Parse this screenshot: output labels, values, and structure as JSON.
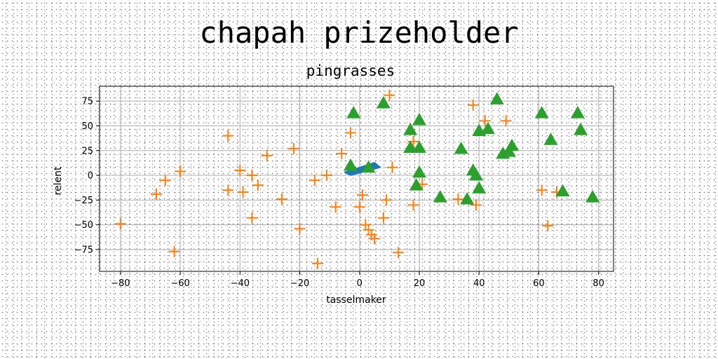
{
  "figure": {
    "suptitle": "chapah prizeholder"
  },
  "chart_data": {
    "type": "scatter",
    "title": "pingrasses",
    "xlabel": "tasselmaker",
    "ylabel": "relent",
    "xlim": [
      -87,
      85
    ],
    "ylim": [
      -97,
      90
    ],
    "xticks": [
      -80,
      -60,
      -40,
      -20,
      0,
      20,
      40,
      60,
      80
    ],
    "yticks": [
      -75,
      -50,
      -25,
      0,
      25,
      50,
      75
    ],
    "grid": true,
    "series": [
      {
        "marker": "polygon",
        "color": "#1f77b4",
        "points": [
          [
            -5,
            3
          ],
          [
            5,
            13
          ],
          [
            7,
            8
          ],
          [
            -3,
            0
          ]
        ]
      },
      {
        "marker": "plus",
        "color": "#ff7f0e",
        "points": [
          [
            -80,
            -49
          ],
          [
            -68,
            -19
          ],
          [
            -65,
            -5
          ],
          [
            -62,
            -77
          ],
          [
            -60,
            4
          ],
          [
            -44,
            40
          ],
          [
            -44,
            -15
          ],
          [
            -40,
            5
          ],
          [
            -39,
            -17
          ],
          [
            -36,
            0
          ],
          [
            -36,
            -43
          ],
          [
            -34,
            -10
          ],
          [
            -31,
            20
          ],
          [
            -26,
            -24
          ],
          [
            -22,
            27
          ],
          [
            -20,
            -54
          ],
          [
            -15,
            -5
          ],
          [
            -14,
            -89
          ],
          [
            -11,
            0
          ],
          [
            -8,
            -32
          ],
          [
            -6,
            22
          ],
          [
            -3,
            43
          ],
          [
            0,
            -32
          ],
          [
            1,
            -20
          ],
          [
            2,
            -50
          ],
          [
            3,
            -55
          ],
          [
            4,
            -60
          ],
          [
            5,
            -64
          ],
          [
            8,
            -43
          ],
          [
            9,
            -25
          ],
          [
            10,
            81
          ],
          [
            11,
            8
          ],
          [
            13,
            -78
          ],
          [
            18,
            34
          ],
          [
            18,
            -30
          ],
          [
            21,
            -9
          ],
          [
            33,
            -24
          ],
          [
            38,
            71
          ],
          [
            39,
            -30
          ],
          [
            42,
            55
          ],
          [
            49,
            55
          ],
          [
            61,
            -15
          ],
          [
            63,
            -51
          ],
          [
            66,
            -17
          ]
        ]
      },
      {
        "marker": "triangle-up",
        "color": "#2ca02c",
        "points": [
          [
            -2,
            63
          ],
          [
            -3,
            10
          ],
          [
            3,
            8
          ],
          [
            8,
            73
          ],
          [
            17,
            46
          ],
          [
            17,
            28
          ],
          [
            20,
            56
          ],
          [
            20,
            28
          ],
          [
            20,
            3
          ],
          [
            19,
            -10
          ],
          [
            27,
            -22
          ],
          [
            34,
            27
          ],
          [
            36,
            -24
          ],
          [
            38,
            5
          ],
          [
            39,
            0
          ],
          [
            40,
            -13
          ],
          [
            40,
            45
          ],
          [
            43,
            47
          ],
          [
            46,
            77
          ],
          [
            48,
            22
          ],
          [
            50,
            24
          ],
          [
            51,
            30
          ],
          [
            61,
            63
          ],
          [
            64,
            36
          ],
          [
            68,
            -16
          ],
          [
            73,
            63
          ],
          [
            74,
            46
          ],
          [
            78,
            -22
          ]
        ]
      }
    ]
  }
}
